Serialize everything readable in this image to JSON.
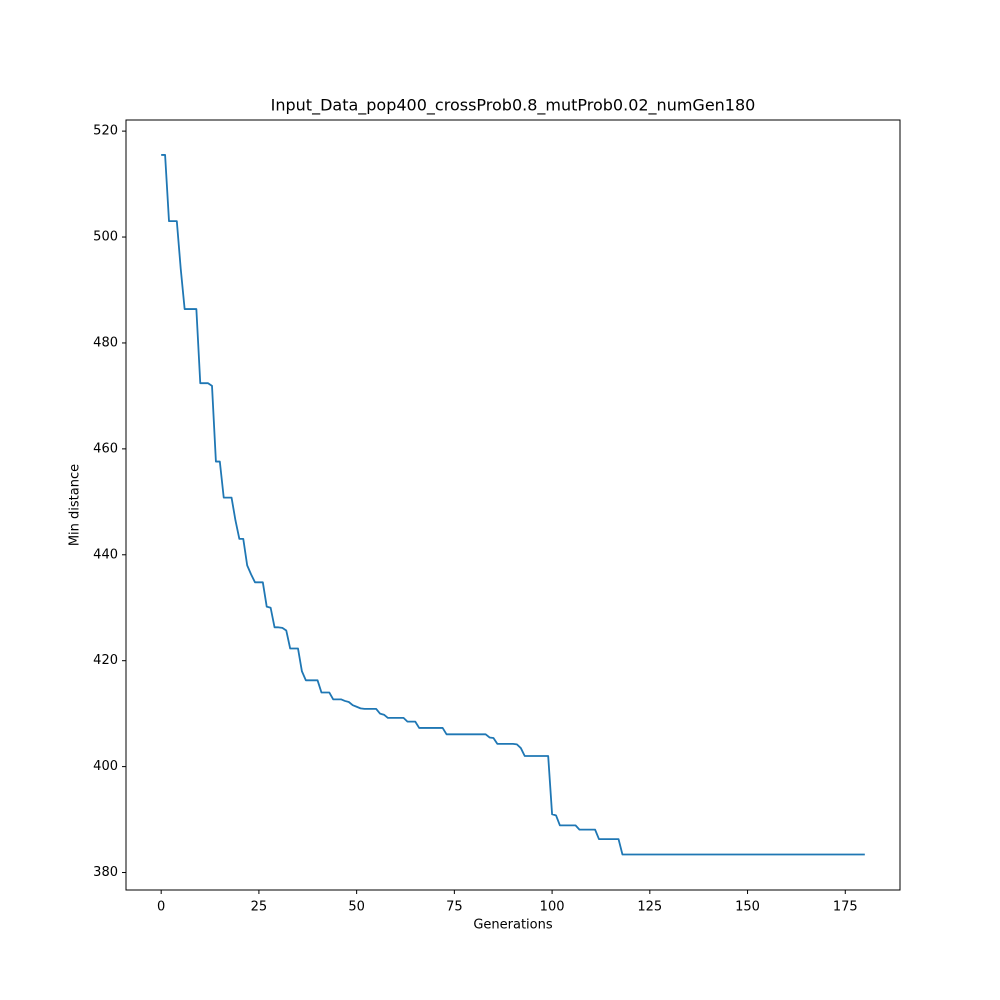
{
  "chart_data": {
    "type": "line",
    "title": "Input_Data_pop400_crossProb0.8_mutProb0.02_numGen180",
    "x_label": "Generations",
    "y_label": "Min distance",
    "x": [
      0,
      1,
      2,
      3,
      4,
      5,
      6,
      7,
      8,
      9,
      10,
      11,
      12,
      13,
      14,
      15,
      16,
      17,
      18,
      19,
      20,
      21,
      22,
      23,
      24,
      25,
      26,
      27,
      28,
      29,
      30,
      31,
      32,
      33,
      34,
      35,
      36,
      37,
      38,
      39,
      40,
      41,
      42,
      43,
      44,
      45,
      46,
      47,
      48,
      49,
      50,
      51,
      52,
      53,
      54,
      55,
      56,
      57,
      58,
      59,
      60,
      61,
      62,
      63,
      64,
      65,
      66,
      67,
      68,
      69,
      70,
      71,
      72,
      73,
      74,
      75,
      76,
      77,
      78,
      79,
      80,
      81,
      82,
      83,
      84,
      85,
      86,
      87,
      88,
      89,
      90,
      91,
      92,
      93,
      94,
      95,
      96,
      97,
      98,
      99,
      100,
      101,
      102,
      103,
      104,
      105,
      106,
      107,
      108,
      109,
      110,
      111,
      112,
      113,
      114,
      115,
      116,
      117,
      118,
      119,
      120,
      121,
      122,
      123,
      124,
      125,
      126,
      127,
      128,
      129,
      130,
      131,
      132,
      133,
      134,
      135,
      136,
      137,
      138,
      139,
      140,
      141,
      142,
      143,
      144,
      145,
      146,
      147,
      148,
      149,
      150,
      151,
      152,
      153,
      154,
      155,
      156,
      157,
      158,
      159,
      160,
      161,
      162,
      163,
      164,
      165,
      166,
      167,
      168,
      169,
      170,
      171,
      172,
      173,
      174,
      175,
      176,
      177,
      178,
      179,
      180
    ],
    "values": [
      515.5,
      515.5,
      503,
      503,
      503,
      494,
      486.4,
      486.4,
      486.4,
      486.4,
      472.4,
      472.4,
      472.4,
      471.9,
      457.6,
      457.6,
      450.8,
      450.8,
      450.8,
      446.5,
      443,
      443,
      438,
      436.3,
      434.8,
      434.8,
      434.8,
      430.2,
      430,
      426.3,
      426.3,
      426.2,
      425.7,
      422.3,
      422.3,
      422.3,
      418,
      416.3,
      416.3,
      416.3,
      416.3,
      414,
      414,
      414,
      412.7,
      412.7,
      412.7,
      412.4,
      412.2,
      411.6,
      411.3,
      411,
      410.9,
      410.9,
      410.9,
      410.9,
      410,
      409.8,
      409.2,
      409.2,
      409.2,
      409.2,
      409.2,
      408.5,
      408.5,
      408.5,
      407.3,
      407.3,
      407.3,
      407.3,
      407.3,
      407.3,
      407.3,
      406.1,
      406.1,
      406.1,
      406.1,
      406.1,
      406.1,
      406.1,
      406.1,
      406.1,
      406.1,
      406.1,
      405.5,
      405.4,
      404.3,
      404.3,
      404.3,
      404.3,
      404.3,
      404.2,
      403.5,
      402,
      402,
      402,
      402,
      402,
      402,
      402,
      391,
      390.8,
      388.9,
      388.9,
      388.9,
      388.9,
      388.9,
      388.1,
      388.1,
      388.1,
      388.1,
      388.1,
      386.3,
      386.3,
      386.3,
      386.3,
      386.3,
      386.3,
      383.4,
      383.4,
      383.4,
      383.4,
      383.4,
      383.4,
      383.4,
      383.4,
      383.4,
      383.4,
      383.4,
      383.4,
      383.4,
      383.4,
      383.4,
      383.4,
      383.4,
      383.4,
      383.4,
      383.4,
      383.4,
      383.4,
      383.4,
      383.4,
      383.4,
      383.4,
      383.4,
      383.4,
      383.4,
      383.4,
      383.4,
      383.4,
      383.4,
      383.4,
      383.4,
      383.4,
      383.4,
      383.4,
      383.4,
      383.4,
      383.4,
      383.4,
      383.4,
      383.4,
      383.4,
      383.4,
      383.4,
      383.4,
      383.4,
      383.4,
      383.4,
      383.4,
      383.4,
      383.4,
      383.4,
      383.4,
      383.4,
      383.4,
      383.4,
      383.4,
      383.4,
      383.4,
      383.4
    ],
    "color": "#1f77b4",
    "xlim": [
      -9,
      189
    ],
    "xticks": [
      0,
      25,
      50,
      75,
      100,
      125,
      150,
      175
    ],
    "ylim": [
      376.7,
      522.1
    ],
    "yticks": [
      380,
      400,
      420,
      440,
      460,
      480,
      500,
      520
    ]
  }
}
